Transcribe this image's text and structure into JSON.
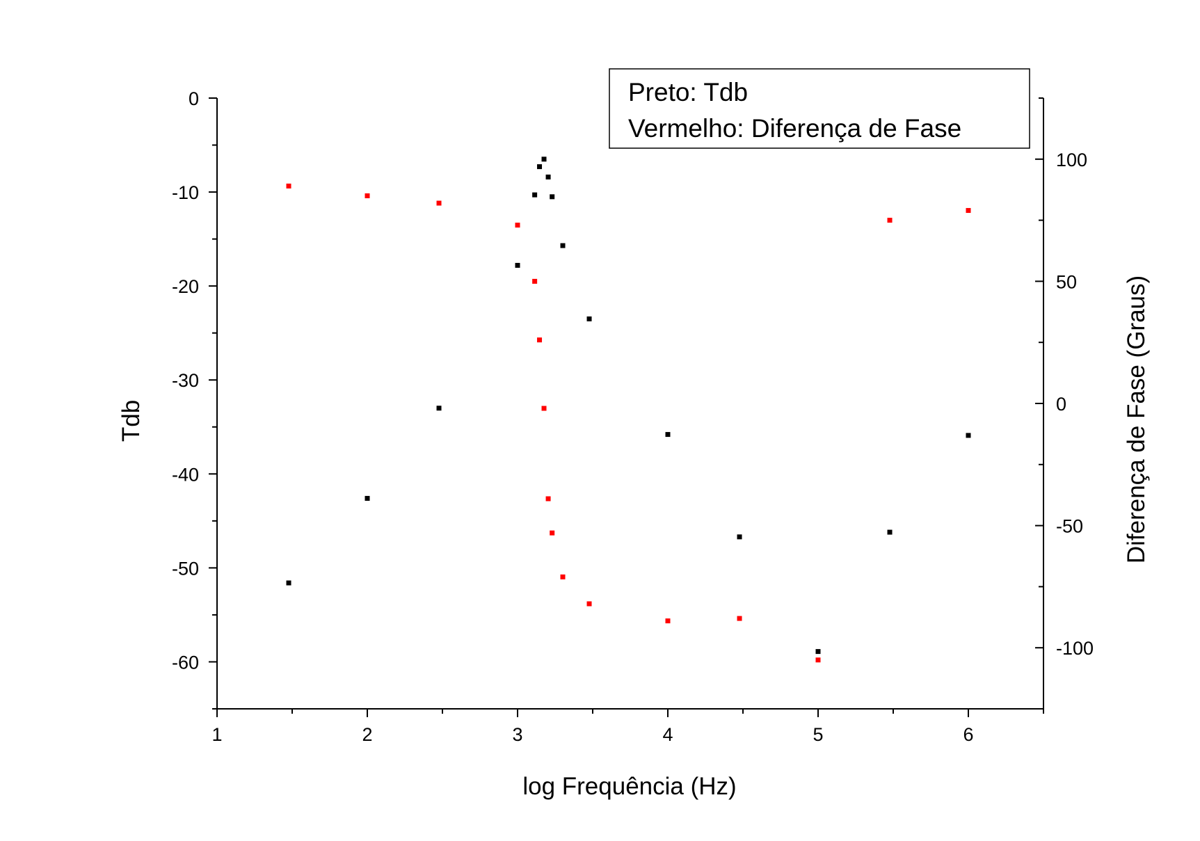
{
  "chart_data": {
    "type": "scatter",
    "xlabel": "log Frequência (Hz)",
    "ylabel": "Tdb",
    "y2label": "Diferença de Fase (Graus)",
    "xlim": [
      1,
      6.5
    ],
    "ylim": [
      -65,
      0
    ],
    "y2lim": [
      -125,
      125
    ],
    "xticks": [
      "1",
      "2",
      "3",
      "4",
      "5",
      "6"
    ],
    "yticks": [
      "0",
      "-10",
      "-20",
      "-30",
      "-40",
      "-50",
      "-60"
    ],
    "y2ticks": [
      "100",
      "50",
      "0",
      "-50",
      "-100"
    ],
    "legend": {
      "lines": [
        "Preto: Tdb",
        "Vermelho: Diferença de Fase"
      ],
      "position": "top-right"
    },
    "grid": false,
    "series": [
      {
        "color": "#000000",
        "axis": "left",
        "points": [
          {
            "x": 1.477,
            "y": -51.6
          },
          {
            "x": 2.0,
            "y": -42.6
          },
          {
            "x": 2.477,
            "y": -33.0
          },
          {
            "x": 3.0,
            "y": -17.8
          },
          {
            "x": 3.114,
            "y": -10.3
          },
          {
            "x": 3.146,
            "y": -7.3
          },
          {
            "x": 3.176,
            "y": -6.5
          },
          {
            "x": 3.204,
            "y": -8.4
          },
          {
            "x": 3.23,
            "y": -10.5
          },
          {
            "x": 3.301,
            "y": -15.7
          },
          {
            "x": 3.477,
            "y": -23.5
          },
          {
            "x": 4.0,
            "y": -35.8
          },
          {
            "x": 4.477,
            "y": -46.7
          },
          {
            "x": 5.0,
            "y": -58.9
          },
          {
            "x": 5.477,
            "y": -46.2
          },
          {
            "x": 6.0,
            "y": -35.9
          }
        ]
      },
      {
        "color": "#ff0000",
        "axis": "right",
        "points": [
          {
            "x": 1.477,
            "y": 89
          },
          {
            "x": 2.0,
            "y": 85
          },
          {
            "x": 2.477,
            "y": 82
          },
          {
            "x": 3.0,
            "y": 73
          },
          {
            "x": 3.114,
            "y": 50
          },
          {
            "x": 3.146,
            "y": 26
          },
          {
            "x": 3.176,
            "y": -2
          },
          {
            "x": 3.204,
            "y": -39
          },
          {
            "x": 3.23,
            "y": -53
          },
          {
            "x": 3.301,
            "y": -71
          },
          {
            "x": 3.477,
            "y": -82
          },
          {
            "x": 4.0,
            "y": -89
          },
          {
            "x": 4.477,
            "y": -88
          },
          {
            "x": 5.0,
            "y": -105
          },
          {
            "x": 5.477,
            "y": 75
          },
          {
            "x": 6.0,
            "y": 79
          }
        ]
      }
    ]
  }
}
